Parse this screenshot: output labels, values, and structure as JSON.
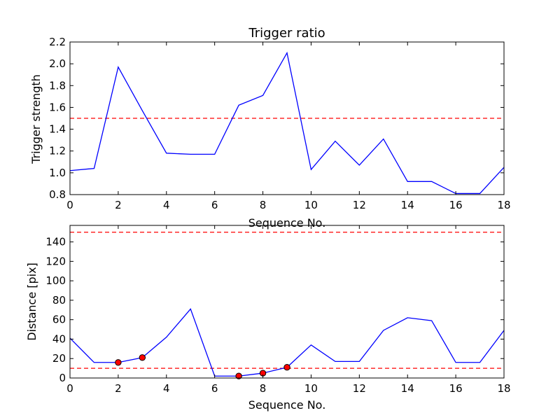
{
  "chart_data": [
    {
      "type": "line",
      "title": "Trigger ratio",
      "xlabel": "Sequence No.",
      "ylabel": "Trigger strength",
      "xlim": [
        0,
        18
      ],
      "ylim": [
        0.8,
        2.2
      ],
      "xticks": [
        "0",
        "2",
        "4",
        "6",
        "8",
        "10",
        "12",
        "14",
        "16",
        "18"
      ],
      "yticks": [
        "0.8",
        "1.0",
        "1.2",
        "1.4",
        "1.6",
        "1.8",
        "2.0",
        "2.2"
      ],
      "grid": false,
      "line_color": "#0000ff",
      "threshold_color": "#ff0000",
      "series": [
        {
          "x": [
            0,
            1,
            2,
            3,
            4,
            5,
            6,
            7,
            8,
            9,
            10,
            11,
            12,
            13,
            14,
            15,
            16,
            17,
            18
          ],
          "values": [
            1.02,
            1.04,
            1.97,
            1.57,
            1.18,
            1.17,
            1.17,
            1.62,
            1.71,
            2.1,
            1.03,
            1.29,
            1.07,
            1.31,
            0.92,
            0.92,
            0.81,
            0.81,
            1.05
          ]
        }
      ],
      "thresholds": [
        1.5
      ]
    },
    {
      "type": "line",
      "title": "",
      "xlabel": "Sequence No.",
      "ylabel": "Distance [pix]",
      "xlim": [
        0,
        18
      ],
      "ylim": [
        0,
        157
      ],
      "xticks": [
        "0",
        "2",
        "4",
        "6",
        "8",
        "10",
        "12",
        "14",
        "16",
        "18"
      ],
      "yticks": [
        "0",
        "20",
        "40",
        "60",
        "80",
        "100",
        "120",
        "140"
      ],
      "grid": false,
      "line_color": "#0000ff",
      "marker_color": "#ff0000",
      "threshold_color": "#ff0000",
      "series": [
        {
          "x": [
            0,
            1,
            2,
            3,
            4,
            5,
            6,
            7,
            8,
            9,
            10,
            11,
            12,
            13,
            14,
            15,
            16,
            17,
            18
          ],
          "values": [
            41,
            16,
            16,
            21,
            42,
            71,
            2,
            2,
            5,
            11,
            34,
            17,
            17,
            49,
            62,
            59,
            16,
            16,
            49
          ]
        }
      ],
      "markers": [
        {
          "x": 2,
          "y": 16
        },
        {
          "x": 3,
          "y": 21
        },
        {
          "x": 7,
          "y": 2
        },
        {
          "x": 8,
          "y": 5
        },
        {
          "x": 9,
          "y": 11
        }
      ],
      "thresholds": [
        10,
        150
      ]
    }
  ]
}
